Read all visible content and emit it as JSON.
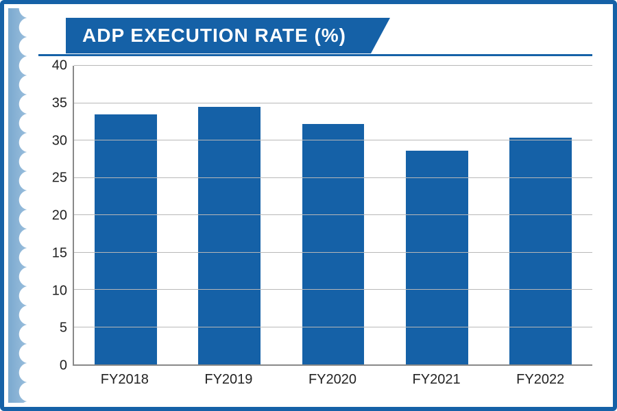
{
  "chart": {
    "type": "bar",
    "title": "ADP EXECUTION RATE (%)",
    "title_fontsize": 28,
    "title_color": "#ffffff",
    "title_bg": "#1561a7",
    "categories": [
      "FY2018",
      "FY2019",
      "FY2020",
      "FY2021",
      "FY2022"
    ],
    "values": [
      33.5,
      34.5,
      32.2,
      28.6,
      30.4
    ],
    "bar_color": "#1561a7",
    "bar_width_pct": 12,
    "ylim": [
      0,
      40
    ],
    "ytick_step": 5,
    "yticks": [
      0,
      5,
      10,
      15,
      20,
      25,
      30,
      35,
      40
    ],
    "grid_color": "#b8b8b8",
    "axis_color": "#888888",
    "label_fontsize": 20,
    "label_color": "#222222",
    "background_color": "#ffffff"
  },
  "frame": {
    "border_color": "#1561a7",
    "scallop_bg_start": "#7ba9cf",
    "scallop_bg_end": "#9cc0de"
  }
}
